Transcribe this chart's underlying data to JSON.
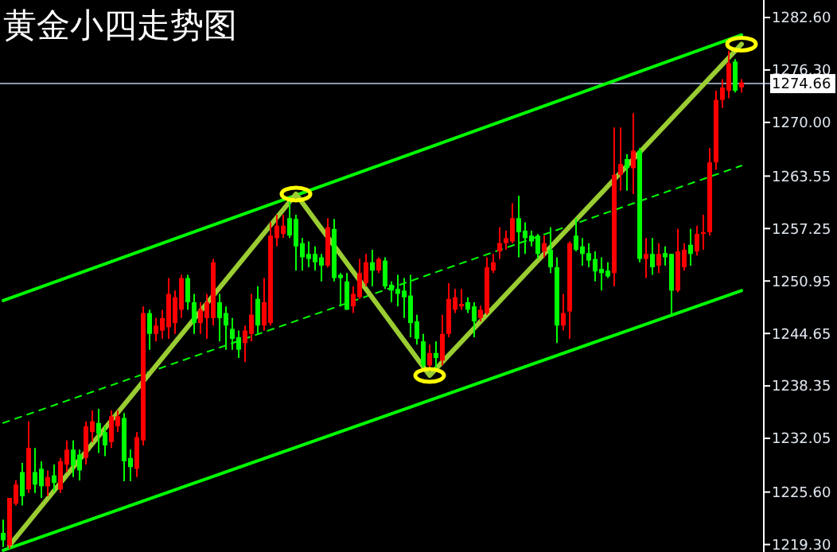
{
  "chart_data": {
    "type": "candlestick",
    "title": "黄金小四走势图",
    "categories": [
      null,
      null,
      null,
      null,
      null,
      null,
      null,
      null,
      null,
      null,
      null,
      null,
      null,
      null,
      null,
      null,
      null,
      null,
      null,
      null,
      null,
      null,
      null,
      null,
      null,
      null,
      null,
      null,
      null,
      null,
      null,
      null,
      null,
      null,
      null,
      null,
      null,
      null,
      null,
      null,
      null,
      null,
      null,
      null,
      null,
      null,
      null,
      null,
      null,
      null,
      null,
      null,
      null,
      null,
      null,
      null,
      null,
      null,
      null,
      null,
      null,
      null,
      null,
      null,
      null,
      null,
      null,
      null,
      null,
      null,
      null,
      null,
      null,
      null,
      null,
      null,
      null,
      null,
      null,
      null,
      null,
      null,
      null,
      null,
      null,
      null,
      null,
      null,
      null,
      null,
      null,
      null,
      null,
      null,
      null,
      null,
      null,
      null,
      null,
      null,
      null,
      null,
      null,
      null,
      null,
      null,
      null,
      null,
      null,
      null,
      null,
      null,
      null,
      null,
      null,
      null,
      null
    ],
    "ohlc": [
      [
        1220.7,
        1222.3,
        1219.0,
        1219.8
      ],
      [
        1219.2,
        1224.9,
        1218.8,
        1224.9
      ],
      [
        1224.2,
        1227.0,
        1224.0,
        1226.5
      ],
      [
        1228.0,
        1229.1,
        1224.0,
        1225.1
      ],
      [
        1225.9,
        1234.1,
        1225.5,
        1230.9
      ],
      [
        1228.0,
        1230.9,
        1225.5,
        1226.5
      ],
      [
        1228.4,
        1229.3,
        1224.9,
        1226.3
      ],
      [
        1226.3,
        1228.2,
        1225.1,
        1227.4
      ],
      [
        1227.6,
        1228.9,
        1225.7,
        1226.7
      ],
      [
        1225.9,
        1229.7,
        1225.5,
        1229.3
      ],
      [
        1228.9,
        1231.8,
        1228.0,
        1230.7
      ],
      [
        1230.7,
        1231.8,
        1227.4,
        1228.8
      ],
      [
        1230.1,
        1230.7,
        1227.0,
        1228.2
      ],
      [
        1229.7,
        1234.1,
        1228.9,
        1233.5
      ],
      [
        1232.8,
        1235.4,
        1231.6,
        1234.1
      ],
      [
        1233.9,
        1235.6,
        1230.3,
        1232.6
      ],
      [
        1232.8,
        1233.5,
        1229.9,
        1231.2
      ],
      [
        1231.6,
        1235.4,
        1230.9,
        1234.7
      ],
      [
        1233.5,
        1235.4,
        1232.8,
        1234.7
      ],
      [
        1234.5,
        1235.1,
        1226.9,
        1229.3
      ],
      [
        1229.7,
        1230.7,
        1226.9,
        1228.6
      ],
      [
        1228.4,
        1232.8,
        1227.4,
        1232.2
      ],
      [
        1231.8,
        1247.9,
        1231.2,
        1247.1
      ],
      [
        1247.1,
        1247.5,
        1242.7,
        1244.6
      ],
      [
        1244.6,
        1246.5,
        1243.7,
        1245.6
      ],
      [
        1245.0,
        1247.5,
        1244.0,
        1246.5
      ],
      [
        1245.4,
        1251.3,
        1244.0,
        1249.4
      ],
      [
        1245.9,
        1249.8,
        1244.6,
        1249.0
      ],
      [
        1247.5,
        1251.7,
        1246.5,
        1251.3
      ],
      [
        1251.3,
        1251.7,
        1247.5,
        1248.4
      ],
      [
        1248.4,
        1249.4,
        1244.6,
        1245.9
      ],
      [
        1245.9,
        1248.4,
        1244.6,
        1247.5
      ],
      [
        1246.5,
        1249.4,
        1244.0,
        1248.4
      ],
      [
        1246.5,
        1253.6,
        1245.6,
        1253.2
      ],
      [
        1248.4,
        1249.4,
        1243.7,
        1246.5
      ],
      [
        1247.1,
        1247.9,
        1242.7,
        1245.6
      ],
      [
        1245.2,
        1246.5,
        1242.7,
        1244.0
      ],
      [
        1244.2,
        1245.0,
        1241.7,
        1242.7
      ],
      [
        1243.5,
        1245.6,
        1241.2,
        1245.0
      ],
      [
        1244.6,
        1249.4,
        1243.7,
        1246.9
      ],
      [
        1248.8,
        1250.3,
        1244.6,
        1245.6
      ],
      [
        1245.6,
        1251.3,
        1245.0,
        1248.4
      ],
      [
        1245.9,
        1258.0,
        1245.6,
        1256.4
      ],
      [
        1256.1,
        1258.9,
        1255.1,
        1257.6
      ],
      [
        1256.6,
        1258.9,
        1256.1,
        1257.6
      ],
      [
        1258.5,
        1260.5,
        1256.1,
        1256.4
      ],
      [
        1258.4,
        1258.9,
        1252.2,
        1255.1
      ],
      [
        1255.5,
        1256.1,
        1252.2,
        1253.8
      ],
      [
        1254.2,
        1255.7,
        1252.6,
        1253.6
      ],
      [
        1254.2,
        1255.1,
        1252.2,
        1253.2
      ],
      [
        1253.8,
        1254.2,
        1250.9,
        1252.8
      ],
      [
        1252.8,
        1258.5,
        1252.6,
        1257.4
      ],
      [
        1257.2,
        1258.4,
        1250.9,
        1251.3
      ],
      [
        1251.7,
        1251.9,
        1247.9,
        1251.3
      ],
      [
        1250.9,
        1251.9,
        1247.5,
        1247.5
      ],
      [
        1247.9,
        1250.3,
        1247.1,
        1249.4
      ],
      [
        1249.0,
        1253.6,
        1248.8,
        1251.9
      ],
      [
        1250.7,
        1254.2,
        1250.3,
        1253.2
      ],
      [
        1253.2,
        1254.7,
        1250.3,
        1252.2
      ],
      [
        1252.2,
        1253.8,
        1251.9,
        1253.6
      ],
      [
        1253.4,
        1253.8,
        1250.0,
        1250.3
      ],
      [
        1250.5,
        1250.9,
        1248.4,
        1249.8
      ],
      [
        1250.0,
        1251.7,
        1247.9,
        1249.4
      ],
      [
        1249.8,
        1251.3,
        1246.5,
        1249.0
      ],
      [
        1249.2,
        1251.7,
        1244.2,
        1245.9
      ],
      [
        1246.1,
        1246.9,
        1243.3,
        1244.0
      ],
      [
        1243.7,
        1244.6,
        1240.2,
        1240.8
      ],
      [
        1240.8,
        1243.3,
        1240.2,
        1242.3
      ],
      [
        1242.3,
        1243.7,
        1240.2,
        1241.7
      ],
      [
        1241.4,
        1246.9,
        1240.8,
        1244.6
      ],
      [
        1244.6,
        1250.7,
        1244.2,
        1248.8
      ],
      [
        1247.5,
        1250.0,
        1247.1,
        1249.0
      ],
      [
        1247.9,
        1250.0,
        1247.5,
        1248.2
      ],
      [
        1248.4,
        1249.0,
        1247.1,
        1247.5
      ],
      [
        1247.9,
        1248.4,
        1244.2,
        1246.1
      ],
      [
        1246.5,
        1248.0,
        1246.1,
        1247.5
      ],
      [
        1247.1,
        1253.8,
        1246.9,
        1252.6
      ],
      [
        1252.2,
        1254.2,
        1251.9,
        1253.2
      ],
      [
        1254.5,
        1257.4,
        1253.6,
        1255.5
      ],
      [
        1255.5,
        1257.0,
        1254.7,
        1256.1
      ],
      [
        1255.7,
        1260.3,
        1255.5,
        1258.5
      ],
      [
        1258.5,
        1261.2,
        1253.8,
        1256.8
      ],
      [
        1257.0,
        1258.0,
        1254.2,
        1256.1
      ],
      [
        1256.4,
        1257.0,
        1255.1,
        1255.7
      ],
      [
        1256.4,
        1256.6,
        1253.6,
        1254.2
      ],
      [
        1254.5,
        1256.4,
        1253.8,
        1255.5
      ],
      [
        1254.7,
        1257.4,
        1251.9,
        1252.6
      ],
      [
        1252.6,
        1253.8,
        1243.5,
        1245.6
      ],
      [
        1245.6,
        1249.4,
        1245.0,
        1247.1
      ],
      [
        1247.3,
        1255.7,
        1244.0,
        1255.5
      ],
      [
        1256.4,
        1258.5,
        1254.5,
        1254.7
      ],
      [
        1255.1,
        1256.1,
        1252.8,
        1254.2
      ],
      [
        1254.3,
        1255.5,
        1252.6,
        1253.4
      ],
      [
        1253.6,
        1254.5,
        1250.9,
        1252.1
      ],
      [
        1252.4,
        1253.8,
        1249.8,
        1251.9
      ],
      [
        1252.2,
        1253.2,
        1251.3,
        1251.5
      ],
      [
        1251.9,
        1269.4,
        1250.3,
        1263.7
      ],
      [
        1263.7,
        1269.4,
        1261.8,
        1265.0
      ],
      [
        1265.6,
        1266.2,
        1261.8,
        1264.5
      ],
      [
        1264.5,
        1271.1,
        1261.4,
        1266.6
      ],
      [
        1266.6,
        1266.9,
        1253.2,
        1253.6
      ],
      [
        1253.6,
        1256.1,
        1251.3,
        1254.2
      ],
      [
        1254.2,
        1256.1,
        1251.7,
        1252.6
      ],
      [
        1252.8,
        1255.5,
        1251.9,
        1254.2
      ],
      [
        1254.3,
        1255.1,
        1252.8,
        1253.8
      ],
      [
        1254.2,
        1254.2,
        1246.9,
        1249.8
      ],
      [
        1249.8,
        1257.2,
        1249.6,
        1254.5
      ],
      [
        1252.6,
        1255.5,
        1252.2,
        1254.7
      ],
      [
        1255.3,
        1257.2,
        1252.8,
        1254.2
      ],
      [
        1254.5,
        1257.6,
        1254.0,
        1256.6
      ],
      [
        1256.6,
        1258.9,
        1254.7,
        1256.8
      ],
      [
        1256.8,
        1266.9,
        1256.4,
        1265.2
      ],
      [
        1265.2,
        1273.8,
        1264.3,
        1272.7
      ],
      [
        1272.7,
        1275.2,
        1271.7,
        1274.2
      ],
      [
        1273.8,
        1278.6,
        1272.9,
        1277.1
      ],
      [
        1277.3,
        1277.6,
        1273.6,
        1273.8
      ],
      [
        1274.2,
        1275.2,
        1273.6,
        1274.8
      ]
    ],
    "colors": [
      "#00ff00",
      "#ff0000",
      "#ff0000",
      "#00ff00",
      "#ff0000",
      "#00ff00",
      "#00ff00",
      "#ff0000",
      "#00ff00",
      "#ff0000",
      "#ff0000",
      "#00ff00",
      "#00ff00",
      "#ff0000",
      "#ff0000",
      "#00ff00",
      "#00ff00",
      "#ff0000",
      "#ff0000",
      "#00ff00",
      "#00ff00",
      "#ff0000",
      "#ff0000",
      "#00ff00",
      "#ff0000",
      "#ff0000",
      "#ff0000",
      "#ff0000",
      "#ff0000",
      "#00ff00",
      "#00ff00",
      "#ff0000",
      "#ff0000",
      "#ff0000",
      "#00ff00",
      "#00ff00",
      "#00ff00",
      "#00ff00",
      "#ff0000",
      "#ff0000",
      "#00ff00",
      "#ff0000",
      "#ff0000",
      "#ff0000",
      "#ff0000",
      "#00ff00",
      "#00ff00",
      "#00ff00",
      "#00ff00",
      "#00ff00",
      "#00ff00",
      "#ff0000",
      "#00ff00",
      "#00ff00",
      "#00ff00",
      "#ff0000",
      "#ff0000",
      "#ff0000",
      "#00ff00",
      "#ff0000",
      "#00ff00",
      "#00ff00",
      "#00ff00",
      "#00ff00",
      "#00ff00",
      "#00ff00",
      "#00ff00",
      "#ff0000",
      "#00ff00",
      "#ff0000",
      "#ff0000",
      "#ff0000",
      "#ff0000",
      "#00ff00",
      "#00ff00",
      "#ff0000",
      "#ff0000",
      "#ff0000",
      "#ff0000",
      "#ff0000",
      "#ff0000",
      "#00ff00",
      "#00ff00",
      "#00ff00",
      "#00ff00",
      "#ff0000",
      "#00ff00",
      "#00ff00",
      "#ff0000",
      "#ff0000",
      "#00ff00",
      "#00ff00",
      "#00ff00",
      "#00ff00",
      "#00ff00",
      "#00ff00",
      "#ff0000",
      "#ff0000",
      "#00ff00",
      "#ff0000",
      "#00ff00",
      "#ff0000",
      "#00ff00",
      "#ff0000",
      "#00ff00",
      "#00ff00",
      "#ff0000",
      "#ff0000",
      "#00ff00",
      "#ff0000",
      "#ff0000",
      "#ff0000",
      "#ff0000",
      "#ff0000",
      "#ff0000",
      "#00ff00",
      "#ff0000"
    ],
    "series": [
      {
        "type": "line",
        "color": "#00ff00",
        "values": [
          1248.6,
          null,
          null,
          null,
          null,
          null,
          null,
          null,
          null,
          null,
          null,
          null,
          null,
          null,
          null,
          null,
          null,
          null,
          null,
          null,
          null,
          null,
          null,
          null,
          null,
          null,
          null,
          null,
          null,
          null,
          null,
          null,
          null,
          null,
          null,
          null,
          null,
          null,
          null,
          null,
          null,
          null,
          null,
          null,
          null,
          null,
          null,
          null,
          null,
          null,
          null,
          null,
          null,
          null,
          null,
          null,
          null,
          null,
          null,
          null,
          null,
          null,
          null,
          null,
          null,
          null,
          null,
          null,
          null,
          null,
          null,
          null,
          null,
          null,
          null,
          null,
          null,
          null,
          null,
          null,
          null,
          null,
          null,
          null,
          null,
          null,
          null,
          null,
          null,
          null,
          null,
          null,
          null,
          null,
          null,
          null,
          null,
          null,
          null,
          null,
          null,
          null,
          null,
          null,
          null,
          null,
          null,
          null,
          null,
          null,
          null,
          null,
          null,
          null,
          null,
          null,
          1280.5
        ]
      },
      {
        "type": "line",
        "color": "#00ff00",
        "line_style": "dashed",
        "values": [
          1233.9,
          null,
          null,
          null,
          null,
          null,
          null,
          null,
          null,
          null,
          null,
          null,
          null,
          null,
          null,
          null,
          null,
          null,
          null,
          null,
          null,
          null,
          null,
          null,
          null,
          null,
          null,
          null,
          null,
          null,
          null,
          null,
          null,
          null,
          null,
          null,
          null,
          null,
          null,
          null,
          null,
          null,
          null,
          null,
          null,
          null,
          null,
          null,
          null,
          null,
          null,
          null,
          null,
          null,
          null,
          null,
          null,
          null,
          null,
          null,
          null,
          null,
          null,
          null,
          null,
          null,
          null,
          null,
          null,
          null,
          null,
          null,
          null,
          null,
          null,
          null,
          null,
          null,
          null,
          null,
          null,
          null,
          null,
          null,
          null,
          null,
          null,
          null,
          null,
          null,
          null,
          null,
          null,
          null,
          null,
          null,
          null,
          null,
          null,
          null,
          null,
          null,
          null,
          null,
          null,
          null,
          null,
          null,
          null,
          null,
          null,
          null,
          null,
          null,
          null,
          null,
          1264.8
        ]
      },
      {
        "type": "line",
        "color": "#00ff00",
        "values": [
          1218.6,
          null,
          null,
          null,
          null,
          null,
          null,
          null,
          null,
          null,
          null,
          null,
          null,
          null,
          null,
          null,
          null,
          null,
          null,
          null,
          null,
          null,
          null,
          null,
          null,
          null,
          null,
          null,
          null,
          null,
          null,
          null,
          null,
          null,
          null,
          null,
          null,
          null,
          null,
          null,
          null,
          null,
          null,
          null,
          null,
          null,
          null,
          null,
          null,
          null,
          null,
          null,
          null,
          null,
          null,
          null,
          null,
          null,
          null,
          null,
          null,
          null,
          null,
          null,
          null,
          null,
          null,
          null,
          null,
          null,
          null,
          null,
          null,
          null,
          null,
          null,
          null,
          null,
          null,
          null,
          null,
          null,
          null,
          null,
          null,
          null,
          null,
          null,
          null,
          null,
          null,
          null,
          null,
          null,
          null,
          null,
          null,
          null,
          null,
          null,
          null,
          null,
          null,
          null,
          null,
          null,
          null,
          null,
          null,
          null,
          null,
          null,
          null,
          null,
          null,
          null,
          1249.8
        ]
      },
      {
        "type": "line",
        "color": "#9acd32",
        "values": [
          null,
          1219.2,
          null,
          null,
          null,
          null,
          null,
          null,
          null,
          null,
          null,
          null,
          null,
          null,
          null,
          null,
          null,
          null,
          null,
          null,
          null,
          null,
          null,
          null,
          null,
          null,
          null,
          null,
          null,
          null,
          null,
          null,
          null,
          null,
          null,
          null,
          null,
          null,
          null,
          null,
          null,
          null,
          null,
          null,
          null,
          null,
          1261.4,
          null,
          null,
          null,
          null,
          null,
          null,
          null,
          null,
          null,
          null,
          null,
          null,
          null,
          null,
          null,
          null,
          null,
          null,
          null,
          null,
          1239.6,
          null,
          null,
          null,
          null,
          null,
          null,
          null,
          null,
          null,
          null,
          null,
          null,
          null,
          null,
          null,
          null,
          null,
          null,
          null,
          null,
          null,
          null,
          null,
          null,
          null,
          null,
          null,
          null,
          null,
          null,
          null,
          null,
          null,
          null,
          null,
          null,
          null,
          null,
          null,
          null,
          null,
          null,
          null,
          null,
          null,
          null,
          null,
          null,
          1279.4
        ]
      },
      {
        "type": "scatter",
        "marker": "circle",
        "color": "#ffff00",
        "values": [
          null,
          null,
          null,
          null,
          null,
          null,
          null,
          null,
          null,
          null,
          null,
          null,
          null,
          null,
          null,
          null,
          null,
          null,
          null,
          null,
          null,
          null,
          null,
          null,
          null,
          null,
          null,
          null,
          null,
          null,
          null,
          null,
          null,
          null,
          null,
          null,
          null,
          null,
          null,
          null,
          null,
          null,
          null,
          null,
          null,
          null,
          1261.4,
          null,
          null,
          null,
          null,
          null,
          null,
          null,
          null,
          null,
          null,
          null,
          null,
          null,
          null,
          null,
          null,
          null,
          null,
          null,
          null,
          1239.6,
          null,
          null,
          null,
          null,
          null,
          null,
          null,
          null,
          null,
          null,
          null,
          null,
          null,
          null,
          null,
          null,
          null,
          null,
          null,
          null,
          null,
          null,
          null,
          null,
          null,
          null,
          null,
          null,
          null,
          null,
          null,
          null,
          null,
          null,
          null,
          null,
          null,
          null,
          null,
          null,
          null,
          null,
          null,
          null,
          null,
          null,
          null,
          null,
          1279.4
        ]
      }
    ],
    "ylim": [
      1218.4,
      1284.7
    ],
    "yticks": [
      {
        "value": 1282.6,
        "label": "1282.60"
      },
      {
        "value": 1276.3,
        "label": "1276.30"
      },
      {
        "value": 1270,
        "label": "1270.00"
      },
      {
        "value": 1263.55,
        "label": "1263.55"
      },
      {
        "value": 1257.25,
        "label": "1257.25"
      },
      {
        "value": 1250.95,
        "label": "1250.95"
      },
      {
        "value": 1244.65,
        "label": "1244.65"
      },
      {
        "value": 1238.35,
        "label": "1238.35"
      },
      {
        "value": 1232.05,
        "label": "1232.05"
      },
      {
        "value": 1225.6,
        "label": "1225.60"
      },
      {
        "value": 1219.3,
        "label": "1219.30"
      }
    ],
    "ref_lines": [
      {
        "axis": "y",
        "value": 1274.66,
        "label": "1274.66",
        "color": "#8c9cb0"
      }
    ]
  }
}
